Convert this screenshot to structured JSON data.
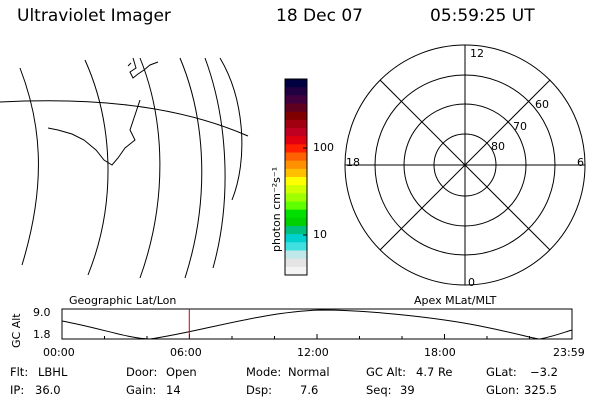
{
  "header": {
    "instrument": "Ultraviolet Imager",
    "date": "18 Dec 07",
    "time": "05:59:25 UT"
  },
  "colorbar": {
    "unit_label": "photon cm⁻²s⁻¹",
    "ticks": [
      "100",
      "10"
    ],
    "colors": [
      "#000040",
      "#200040",
      "#400040",
      "#600020",
      "#800000",
      "#a00010",
      "#c00020",
      "#e00010",
      "#ff2000",
      "#ff6000",
      "#ff9000",
      "#ffc000",
      "#ffff00",
      "#d0ff00",
      "#a0ff00",
      "#60ff00",
      "#00e000",
      "#00d000",
      "#00c080",
      "#00d0d0",
      "#40e0e0",
      "#c0e8e8",
      "#e4e4e4",
      "#f4f4f4"
    ]
  },
  "polar": {
    "lat_labels": [
      "80",
      "70",
      "60"
    ],
    "mlt_labels": {
      "top": "12",
      "left": "18",
      "right": "6",
      "bottom": "0"
    }
  },
  "track": {
    "left_title": "Geographic Lat/Lon",
    "right_title": "Apex MLat/MLT",
    "ylabel": "GC Alt",
    "y_ticks": [
      "9.0",
      "1.8"
    ],
    "x_ticks": [
      "00:00",
      "06:00",
      "12:00",
      "18:00",
      "23:59"
    ],
    "current_hour": 5.99,
    "marker_color": "#cc0000"
  },
  "info": {
    "flt_label": "Flt:",
    "flt_value": "LBHL",
    "ip_label": "IP:",
    "ip_value": "36.0",
    "door_label": "Door:",
    "door_value": "Open",
    "gain_label": "Gain:",
    "gain_value": "14",
    "mode_label": "Mode:",
    "mode_value": "Normal",
    "dsp_label": "Dsp:",
    "dsp_value": "7.6",
    "gcalt_label": "GC Alt:",
    "gcalt_value": "4.7 Re",
    "seq_label": "Seq:",
    "seq_value": "39",
    "glat_label": "GLat:",
    "glat_value": "−3.2",
    "glon_label": "GLon:",
    "glon_value": "325.5"
  }
}
